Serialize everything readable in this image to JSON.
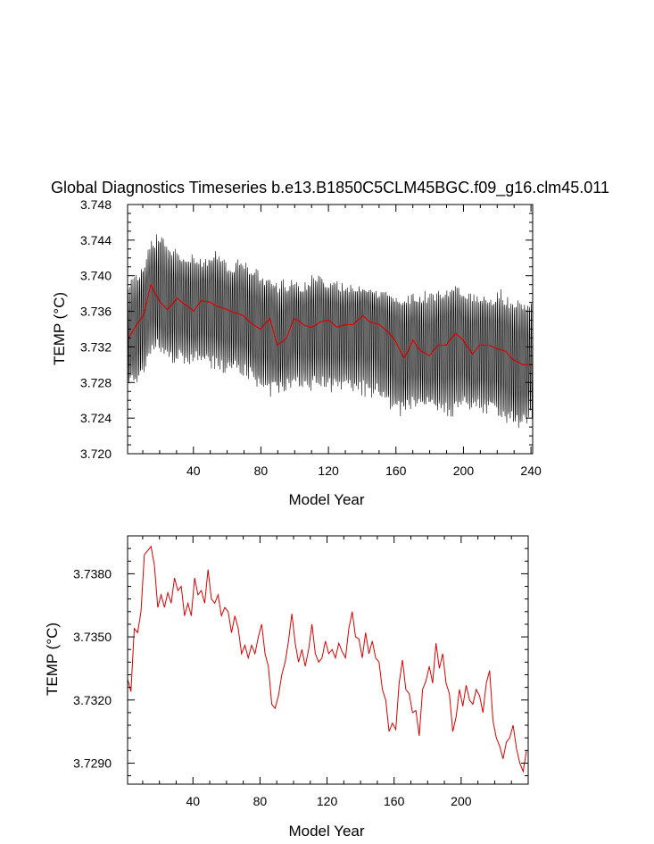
{
  "chart_data": [
    {
      "type": "line",
      "title": "Global Diagnostics Timeseries b.e13.B1850C5CLM45BGC.f09_g16.clm45.011",
      "xlabel": "Model Year",
      "ylabel": "TEMP (°C)",
      "xlim": [
        1,
        241
      ],
      "ylim": [
        3.72,
        3.748
      ],
      "x_ticks": [
        40,
        80,
        120,
        160,
        200,
        240
      ],
      "y_ticks": [
        "3.720",
        "3.724",
        "3.728",
        "3.732",
        "3.736",
        "3.740",
        "3.744",
        "3.748"
      ],
      "series": [
        {
          "color": "#000000",
          "style": "monthly",
          "envelope_top": [
            3.739,
            3.7405,
            3.7415,
            3.744,
            3.7452,
            3.744,
            3.743,
            3.7425,
            3.7425,
            3.742,
            3.742,
            3.743,
            3.742,
            3.741,
            3.7425,
            3.7415,
            3.741,
            3.7402,
            3.74,
            3.7395,
            3.7398,
            3.7395,
            3.739,
            3.74,
            3.7405,
            3.7395,
            3.7395,
            3.7392,
            3.7392,
            3.739,
            3.739,
            3.7385,
            3.7382,
            3.7385,
            3.738,
            3.7382,
            3.738,
            3.7385,
            3.7383,
            3.7384,
            3.739,
            3.7392,
            3.7385,
            3.738,
            3.738,
            3.7382,
            3.7378,
            3.7385,
            3.7375,
            3.7372,
            3.7375,
            3.738
          ],
          "envelope_bottom": [
            3.7275,
            3.7275,
            3.7285,
            3.731,
            3.7315,
            3.7305,
            3.73,
            3.73,
            3.73,
            3.7298,
            3.7295,
            3.7295,
            3.729,
            3.7285,
            3.729,
            3.7285,
            3.7275,
            3.727,
            3.7262,
            3.7268,
            3.727,
            3.7275,
            3.7272,
            3.727,
            3.7275,
            3.727,
            3.7268,
            3.727,
            3.7268,
            3.7265,
            3.7262,
            3.7262,
            3.7255,
            3.725,
            3.724,
            3.7245,
            3.7248,
            3.7252,
            3.725,
            3.7245,
            3.7242,
            3.724,
            3.725,
            3.7248,
            3.7245,
            3.7242,
            3.7245,
            3.7235,
            3.723,
            3.7225,
            3.723,
            3.724
          ]
        },
        {
          "color": "#dd0000",
          "style": "annual",
          "x": [
            1,
            5,
            10,
            15,
            20,
            25,
            30,
            35,
            40,
            45,
            50,
            55,
            60,
            65,
            70,
            75,
            80,
            85,
            90,
            95,
            100,
            105,
            110,
            115,
            120,
            125,
            130,
            135,
            140,
            145,
            150,
            155,
            160,
            165,
            170,
            175,
            180,
            185,
            190,
            195,
            200,
            205,
            210,
            215,
            220,
            225,
            230,
            235,
            241
          ],
          "values": [
            3.733,
            3.734,
            3.7355,
            3.739,
            3.737,
            3.7362,
            3.7375,
            3.7368,
            3.736,
            3.7372,
            3.737,
            3.7365,
            3.7362,
            3.7358,
            3.7355,
            3.7345,
            3.734,
            3.7352,
            3.7322,
            3.733,
            3.7352,
            3.7345,
            3.7342,
            3.7348,
            3.735,
            3.7342,
            3.7345,
            3.7345,
            3.7355,
            3.7348,
            3.7345,
            3.7338,
            3.7325,
            3.7308,
            3.7328,
            3.7315,
            3.731,
            3.7322,
            3.7322,
            3.7335,
            3.7328,
            3.7312,
            3.7322,
            3.7322,
            3.7318,
            3.7315,
            3.7305,
            3.73,
            3.73
          ]
        }
      ]
    },
    {
      "type": "line",
      "title": "",
      "xlabel": "Model Year",
      "ylabel": "TEMP (°C)",
      "xlim": [
        1,
        240
      ],
      "ylim": [
        3.728,
        3.7398
      ],
      "x_ticks": [
        40,
        80,
        120,
        160,
        200
      ],
      "y_ticks": [
        "3.7290",
        "3.7320",
        "3.7350",
        "3.7380"
      ],
      "series": [
        {
          "color": "#dd0000",
          "x": [
            1,
            3,
            5,
            7,
            9,
            11,
            13,
            15,
            17,
            19,
            21,
            23,
            25,
            27,
            29,
            31,
            33,
            35,
            37,
            39,
            41,
            43,
            45,
            47,
            49,
            51,
            53,
            55,
            57,
            59,
            61,
            63,
            65,
            67,
            69,
            71,
            73,
            75,
            77,
            79,
            81,
            83,
            85,
            87,
            89,
            91,
            93,
            95,
            97,
            99,
            101,
            103,
            105,
            107,
            109,
            111,
            113,
            115,
            117,
            119,
            121,
            123,
            125,
            127,
            129,
            131,
            133,
            135,
            137,
            139,
            141,
            143,
            145,
            147,
            149,
            151,
            153,
            155,
            157,
            159,
            161,
            163,
            165,
            167,
            169,
            171,
            173,
            175,
            177,
            179,
            181,
            183,
            185,
            187,
            189,
            191,
            193,
            195,
            197,
            199,
            201,
            203,
            205,
            207,
            209,
            211,
            213,
            215,
            217,
            219,
            221,
            223,
            225,
            227,
            229,
            231,
            233,
            235,
            237,
            239
          ],
          "values": [
            3.733,
            3.7324,
            3.7354,
            3.7352,
            3.7362,
            3.7389,
            3.7391,
            3.7393,
            3.7384,
            3.7364,
            3.737,
            3.7364,
            3.7371,
            3.7366,
            3.7378,
            3.7372,
            3.7374,
            3.736,
            3.7366,
            3.736,
            3.7378,
            3.737,
            3.7372,
            3.7366,
            3.7382,
            3.7368,
            3.7366,
            3.737,
            3.736,
            3.7364,
            3.7362,
            3.7352,
            3.736,
            3.7354,
            3.7342,
            3.7346,
            3.734,
            3.7346,
            3.7342,
            3.735,
            3.7356,
            3.7342,
            3.7336,
            3.7318,
            3.7316,
            3.7322,
            3.7332,
            3.7338,
            3.7348,
            3.7361,
            3.7347,
            3.7338,
            3.7344,
            3.7336,
            3.7344,
            3.7356,
            3.7342,
            3.7338,
            3.734,
            3.7348,
            3.7342,
            3.7344,
            3.734,
            3.7347,
            3.7343,
            3.734,
            3.7354,
            3.7362,
            3.735,
            3.7349,
            3.734,
            3.7352,
            3.7342,
            3.7348,
            3.734,
            3.7338,
            3.7325,
            3.732,
            3.7305,
            3.7309,
            3.7306,
            3.7328,
            3.7339,
            3.7325,
            3.7323,
            3.7314,
            3.7315,
            3.7303,
            3.7325,
            3.7329,
            3.7336,
            3.7328,
            3.7347,
            3.7335,
            3.7342,
            3.7328,
            3.7323,
            3.7305,
            3.7312,
            3.7325,
            3.7317,
            3.7327,
            3.732,
            3.7318,
            3.7325,
            3.7322,
            3.7314,
            3.7328,
            3.7334,
            3.731,
            3.7302,
            3.7298,
            3.7292,
            3.73,
            3.7302,
            3.7308,
            3.7297,
            3.729,
            3.7286,
            3.7296
          ]
        }
      ]
    }
  ]
}
